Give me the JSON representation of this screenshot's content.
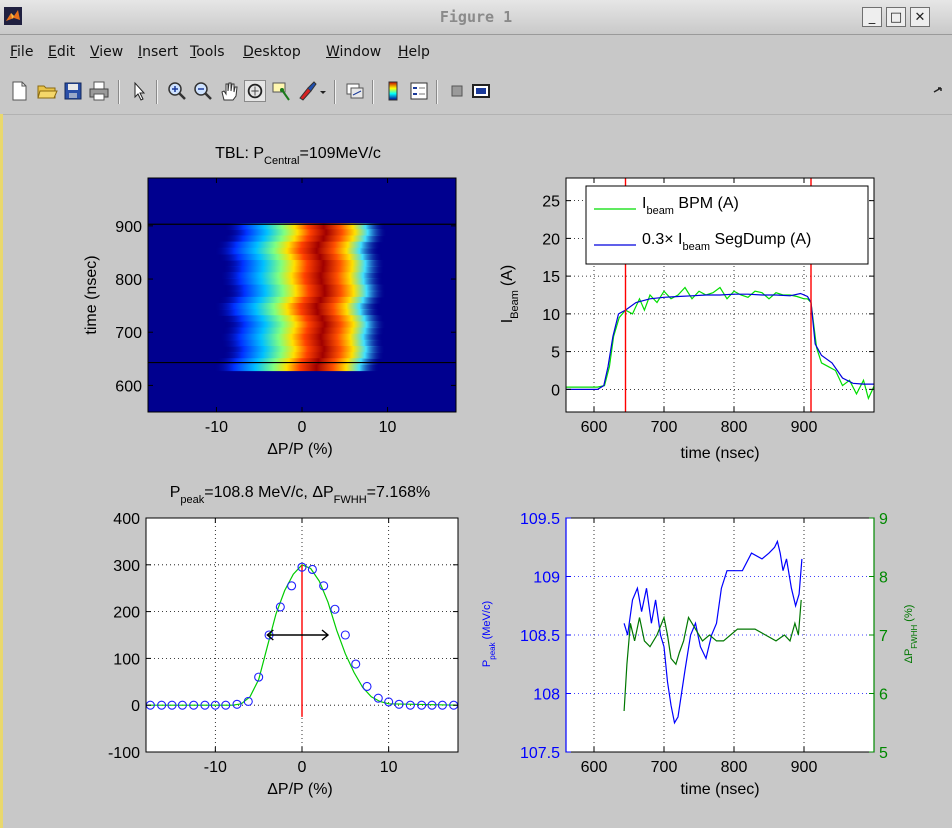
{
  "window": {
    "title": "Figure 1",
    "buttons": [
      "_",
      "□",
      "✕"
    ]
  },
  "menu": {
    "items": [
      {
        "label": "File",
        "underline": "F",
        "rest": "ile"
      },
      {
        "label": "Edit",
        "underline": "E",
        "rest": "dit"
      },
      {
        "label": "View",
        "underline": "V",
        "rest": "iew"
      },
      {
        "label": "Insert",
        "underline": "I",
        "rest": "nsert"
      },
      {
        "label": "Tools",
        "underline": "T",
        "rest": "ools"
      },
      {
        "label": "Desktop",
        "underline": "D",
        "rest": "esktop"
      },
      {
        "label": "Window",
        "underline": "W",
        "rest": "indow"
      },
      {
        "label": "Help",
        "underline": "H",
        "rest": "elp"
      }
    ]
  },
  "toolbar": {
    "icons": [
      "new-figure-icon",
      "open-file-icon",
      "save-icon",
      "print-icon",
      "select-arrow-icon",
      "zoom-in-icon",
      "zoom-out-icon",
      "pan-hand-icon",
      "rotate-3d-icon",
      "data-cursor-icon",
      "brush-icon",
      "link-plot-icon",
      "colorbar-icon",
      "legend-icon",
      "hide-plot-tools-icon",
      "show-plot-tools-icon"
    ]
  },
  "chart_data": [
    {
      "id": "top-left",
      "type": "heatmap",
      "title_main": "TBL: P",
      "title_sub": "Central",
      "title_rest": "=109MeV/c",
      "xlabel": "ΔP/P (%)",
      "ylabel": "time (nsec)",
      "xlim": [
        -18,
        18
      ],
      "ylim": [
        550,
        990
      ],
      "xticks": [
        -10,
        0,
        10
      ],
      "yticks": [
        600,
        700,
        800,
        900
      ],
      "hlines": [
        903,
        643
      ],
      "colormap": "jet"
    },
    {
      "id": "top-right",
      "type": "line",
      "xlabel": "time (nsec)",
      "ylabel_main": "I",
      "ylabel_sub": "Beam",
      "ylabel_rest": "(A)",
      "xlim": [
        560,
        1000
      ],
      "ylim": [
        -3,
        28
      ],
      "xticks": [
        600,
        700,
        800,
        900
      ],
      "yticks": [
        0,
        5,
        10,
        15,
        20,
        25
      ],
      "grid": true,
      "vlines": [
        645,
        910
      ],
      "legend_position": "top-right",
      "legend": [
        {
          "pre": "I",
          "sub": "beam",
          "post": " BPM (A)",
          "color": "#00dd00"
        },
        {
          "pre": "0.3× I",
          "sub": "beam",
          "post": " SegDump (A)",
          "color": "#0000dd"
        }
      ],
      "series": [
        {
          "color": "#00dd00",
          "x": [
            560,
            605,
            615,
            622,
            628,
            636,
            645,
            655,
            665,
            672,
            680,
            690,
            700,
            710,
            720,
            730,
            740,
            750,
            760,
            770,
            780,
            790,
            800,
            810,
            820,
            830,
            840,
            850,
            860,
            870,
            880,
            890,
            900,
            905,
            910,
            918,
            925,
            935,
            945,
            955,
            965,
            975,
            985,
            992,
            1000
          ],
          "y": [
            0.3,
            0.3,
            0.5,
            3,
            7,
            9.5,
            10.5,
            10,
            12,
            10.5,
            12.5,
            11.5,
            13,
            12,
            12.5,
            13.5,
            12,
            13,
            12.5,
            12.8,
            13.5,
            12,
            13,
            12.5,
            12.2,
            13,
            12.8,
            12,
            12.8,
            12.5,
            12.5,
            12.3,
            12,
            12,
            11.5,
            5.5,
            3.5,
            3.0,
            2.5,
            0.5,
            1.2,
            -0.6,
            1.2,
            -1.2,
            0.4
          ]
        },
        {
          "color": "#0000dd",
          "x": [
            560,
            605,
            614,
            620,
            627,
            635,
            645,
            660,
            680,
            700,
            720,
            740,
            760,
            780,
            800,
            820,
            840,
            860,
            880,
            895,
            905,
            910,
            916,
            925,
            940,
            955,
            970,
            985,
            1000
          ],
          "y": [
            0,
            0,
            0.5,
            3,
            7,
            10,
            10.5,
            11.5,
            12,
            12.2,
            12.3,
            12.4,
            12.5,
            12.5,
            12.6,
            12.6,
            12.5,
            12.5,
            12.4,
            12.7,
            12.3,
            11.5,
            6,
            4.5,
            3.5,
            1.5,
            0.8,
            0.7,
            0.7
          ]
        }
      ]
    },
    {
      "id": "bottom-left",
      "type": "line",
      "title": "P_peak=108.8 MeV/c, ΔP_FWHH=7.168%",
      "title_p": "P",
      "title_p_sub": "peak",
      "title_mid": "=108.8 MeV/c, ΔP",
      "title_d_sub": "FWHH",
      "title_rest": "=7.168%",
      "xlabel": "ΔP/P (%)",
      "xlim": [
        -18,
        18
      ],
      "ylim": [
        -100,
        400
      ],
      "xticks": [
        -10,
        0,
        10
      ],
      "yticks": [
        -100,
        0,
        100,
        200,
        300,
        400
      ],
      "grid": true,
      "peak_x": 0,
      "fwhh": {
        "x1": -4,
        "x2": 3,
        "y": 150
      },
      "markers": {
        "x": [
          -17.5,
          -16.2,
          -15,
          -13.8,
          -12.5,
          -11.2,
          -10,
          -8.8,
          -7.5,
          -6.2,
          -5,
          -3.8,
          -2.5,
          -1.2,
          0,
          1.2,
          2.5,
          3.8,
          5,
          6.2,
          7.5,
          8.8,
          10,
          11.2,
          12.5,
          13.8,
          15,
          16.2,
          17.5
        ],
        "y": [
          0,
          0,
          0,
          0,
          0,
          0,
          0,
          0,
          2,
          8,
          60,
          150,
          210,
          255,
          295,
          290,
          255,
          205,
          150,
          88,
          40,
          15,
          7,
          2,
          0,
          0,
          0,
          0,
          0
        ]
      },
      "fit": {
        "x": [
          -18,
          -8,
          -7,
          -6,
          -5,
          -4,
          -3,
          -2,
          -1,
          0,
          1,
          2,
          3,
          4,
          5,
          6,
          7,
          8,
          9,
          10,
          18
        ],
        "y": [
          0,
          0,
          3,
          18,
          55,
          125,
          195,
          245,
          280,
          300,
          292,
          265,
          220,
          160,
          110,
          70,
          38,
          18,
          8,
          3,
          0
        ]
      }
    },
    {
      "id": "bottom-right",
      "type": "line",
      "xlabel": "time (nsec)",
      "xlim": [
        560,
        1000
      ],
      "xticks": [
        600,
        700,
        800,
        900
      ],
      "left_axis": {
        "label_main": "P",
        "label_sub": "peak",
        "label_rest": "(MeV/c)",
        "lim": [
          107.5,
          109.5
        ],
        "ticks": [
          "107.5",
          "108",
          "108.5",
          "109",
          "109.5"
        ],
        "color": "#0000ff"
      },
      "right_axis": {
        "label_main": "ΔP",
        "label_sub": "FWHH",
        "label_rest": "(%)",
        "lim": [
          5,
          9
        ],
        "ticks": [
          "5",
          "6",
          "7",
          "8",
          "9"
        ],
        "color": "#008800"
      },
      "grid": true,
      "series": [
        {
          "name": "P_peak",
          "axis": "left",
          "color": "#0000ff",
          "x": [
            643,
            648,
            655,
            662,
            668,
            675,
            682,
            688,
            695,
            700,
            705,
            710,
            715,
            720,
            725,
            730,
            738,
            745,
            752,
            760,
            768,
            775,
            782,
            790,
            800,
            812,
            825,
            840,
            850,
            858,
            862,
            866,
            870,
            875,
            882,
            888,
            893,
            897
          ],
          "y": [
            108.6,
            108.5,
            108.8,
            108.9,
            108.7,
            108.9,
            108.6,
            108.8,
            108.5,
            108.4,
            108.1,
            107.9,
            107.75,
            107.8,
            108,
            108.2,
            108.5,
            108.6,
            108.4,
            108.3,
            108.5,
            108.6,
            108.9,
            109.05,
            109.05,
            109.05,
            109.2,
            109.15,
            109.2,
            109.25,
            109.3,
            109.2,
            109.05,
            109.15,
            108.9,
            108.75,
            108.85,
            109.15
          ]
        },
        {
          "name": "ΔP_FWHH",
          "axis": "right",
          "color": "#007700",
          "x": [
            643,
            647,
            652,
            658,
            665,
            672,
            680,
            690,
            700,
            705,
            710,
            717,
            722,
            728,
            735,
            745,
            755,
            765,
            775,
            785,
            795,
            805,
            815,
            830,
            845,
            860,
            872,
            880,
            887,
            892,
            896
          ],
          "y": [
            5.7,
            6.5,
            7.2,
            6.9,
            7.3,
            6.9,
            6.8,
            7.0,
            7.3,
            7.0,
            6.6,
            6.5,
            6.7,
            6.9,
            7.3,
            7.1,
            6.9,
            7.0,
            6.9,
            6.9,
            7.0,
            7.1,
            7.1,
            7.1,
            7.0,
            6.9,
            7.0,
            6.9,
            7.2,
            7.0,
            7.6
          ]
        }
      ]
    }
  ]
}
